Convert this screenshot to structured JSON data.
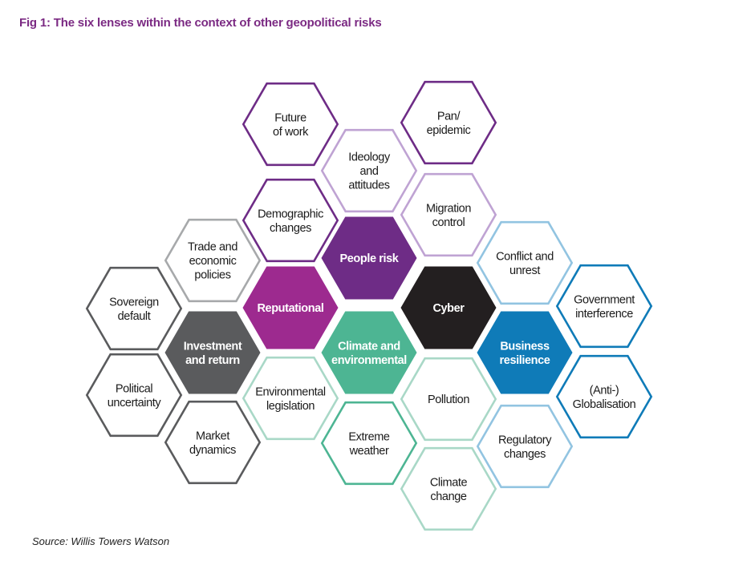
{
  "title": "Fig 1: The six lenses within the context of other geopolitical risks",
  "source": "Source: Willis Towers Watson",
  "colors": {
    "purple": "#6e2c86",
    "light_purple": "#bfa3d3",
    "magenta": "#9d2a8f",
    "dark_gray": "#5a5b5d",
    "light_gray": "#a7a9ab",
    "black": "#231f20",
    "teal": "#4db593",
    "light_teal": "#a9d8c7",
    "blue": "#0f7bb8",
    "light_blue": "#92c4e1"
  },
  "hexagons": [
    {
      "lines": [
        "Future",
        "of work"
      ],
      "style": "outline",
      "color": "purple"
    },
    {
      "lines": [
        "Pan/",
        "epidemic"
      ],
      "style": "outline",
      "color": "purple"
    },
    {
      "lines": [
        "Ideology",
        "and",
        "attitudes"
      ],
      "style": "outline",
      "color": "light_purple"
    },
    {
      "lines": [
        "Demographic",
        "changes"
      ],
      "style": "outline",
      "color": "purple"
    },
    {
      "lines": [
        "Migration",
        "control"
      ],
      "style": "outline",
      "color": "light_purple"
    },
    {
      "lines": [
        "Trade and",
        "economic",
        "policies"
      ],
      "style": "outline",
      "color": "light_gray"
    },
    {
      "lines": [
        "People risk"
      ],
      "style": "filled",
      "color": "purple"
    },
    {
      "lines": [
        "Conflict and",
        "unrest"
      ],
      "style": "outline",
      "color": "light_blue"
    },
    {
      "lines": [
        "Sovereign",
        "default"
      ],
      "style": "outline",
      "color": "dark_gray"
    },
    {
      "lines": [
        "Reputational"
      ],
      "style": "filled",
      "color": "magenta"
    },
    {
      "lines": [
        "Cyber"
      ],
      "style": "filled",
      "color": "black"
    },
    {
      "lines": [
        "Government",
        "interference"
      ],
      "style": "outline",
      "color": "blue"
    },
    {
      "lines": [
        "Investment",
        "and return"
      ],
      "style": "filled",
      "color": "dark_gray"
    },
    {
      "lines": [
        "Climate and",
        "environmental"
      ],
      "style": "filled",
      "color": "teal"
    },
    {
      "lines": [
        "Business",
        "resilience"
      ],
      "style": "filled",
      "color": "blue"
    },
    {
      "lines": [
        "Political",
        "uncertainty"
      ],
      "style": "outline",
      "color": "dark_gray"
    },
    {
      "lines": [
        "Environmental",
        "legislation"
      ],
      "style": "outline",
      "color": "light_teal"
    },
    {
      "lines": [
        "Pollution"
      ],
      "style": "outline",
      "color": "light_teal"
    },
    {
      "lines": [
        "(Anti-)",
        "Globalisation"
      ],
      "style": "outline",
      "color": "blue"
    },
    {
      "lines": [
        "Market",
        "dynamics"
      ],
      "style": "outline",
      "color": "dark_gray"
    },
    {
      "lines": [
        "Extreme",
        "weather"
      ],
      "style": "outline",
      "color": "teal"
    },
    {
      "lines": [
        "Regulatory",
        "changes"
      ],
      "style": "outline",
      "color": "light_blue"
    },
    {
      "lines": [
        "Climate",
        "change"
      ],
      "style": "outline",
      "color": "light_teal"
    }
  ]
}
